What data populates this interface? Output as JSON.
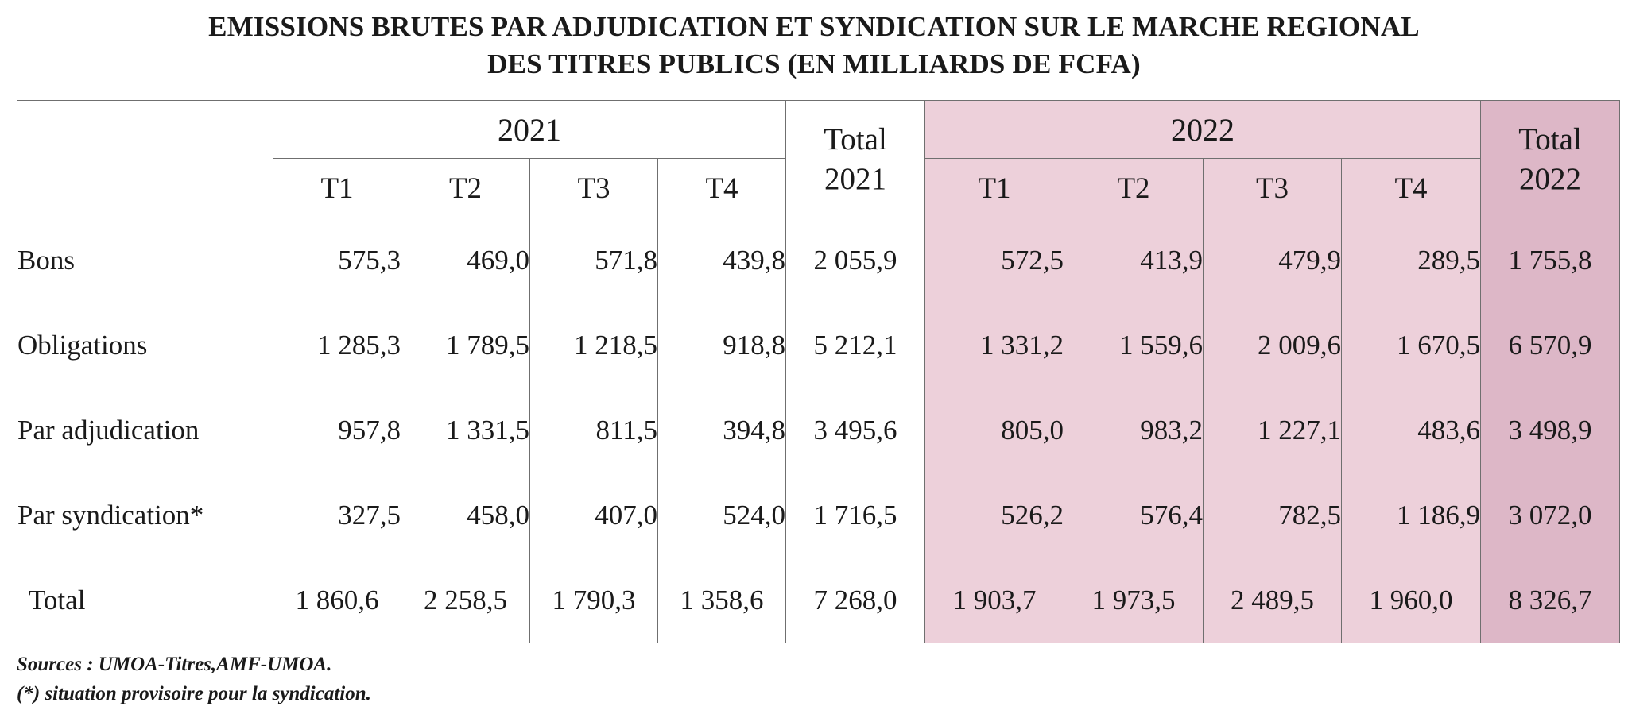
{
  "title": {
    "line1": "EMISSIONS BRUTES PAR ADJUDICATION ET SYNDICATION SUR LE MARCHE REGIONAL",
    "line2": "DES TITRES PUBLICS (EN MILLIARDS DE FCFA)"
  },
  "table": {
    "year1": "2021",
    "year2": "2022",
    "total1_line1": "Total",
    "total1_line2": "2021",
    "total2_line1": "Total",
    "total2_line2": "2022",
    "quarters": [
      "T1",
      "T2",
      "T3",
      "T4"
    ],
    "rows": [
      {
        "label": "Bons",
        "values": [
          "575,3",
          "469,0",
          "571,8",
          "439,8",
          "2 055,9",
          "572,5",
          "413,9",
          "479,9",
          "289,5",
          "1 755,8"
        ]
      },
      {
        "label": "Obligations",
        "values": [
          "1 285,3",
          "1 789,5",
          "1 218,5",
          "918,8",
          "5 212,1",
          "1 331,2",
          "1 559,6",
          "2 009,6",
          "1 670,5",
          "6 570,9"
        ]
      },
      {
        "label": "Par adjudication",
        "values": [
          "957,8",
          "1 331,5",
          "811,5",
          "394,8",
          "3 495,6",
          "805,0",
          "983,2",
          "1 227,1",
          "483,6",
          "3 498,9"
        ]
      },
      {
        "label": "Par syndication*",
        "values": [
          "327,5",
          "458,0",
          "407,0",
          "524,0",
          "1 716,5",
          "526,2",
          "576,4",
          "782,5",
          "1 186,9",
          "3 072,0"
        ]
      },
      {
        "label": "Total",
        "values": [
          "1 860,6",
          "2 258,5",
          "1 790,3",
          "1 358,6",
          "7 268,0",
          "1 903,7",
          "1 973,5",
          "2 489,5",
          "1 960,0",
          "8 326,7"
        ]
      }
    ]
  },
  "notes": {
    "sources": "Sources : UMOA-Titres,AMF-UMOA.",
    "provisional": "(*) situation provisoire pour la syndication."
  },
  "colors": {
    "bg_2022": "#edd0da",
    "bg_total_2022": "#ddb7c7",
    "border": "#6f6f6f"
  }
}
